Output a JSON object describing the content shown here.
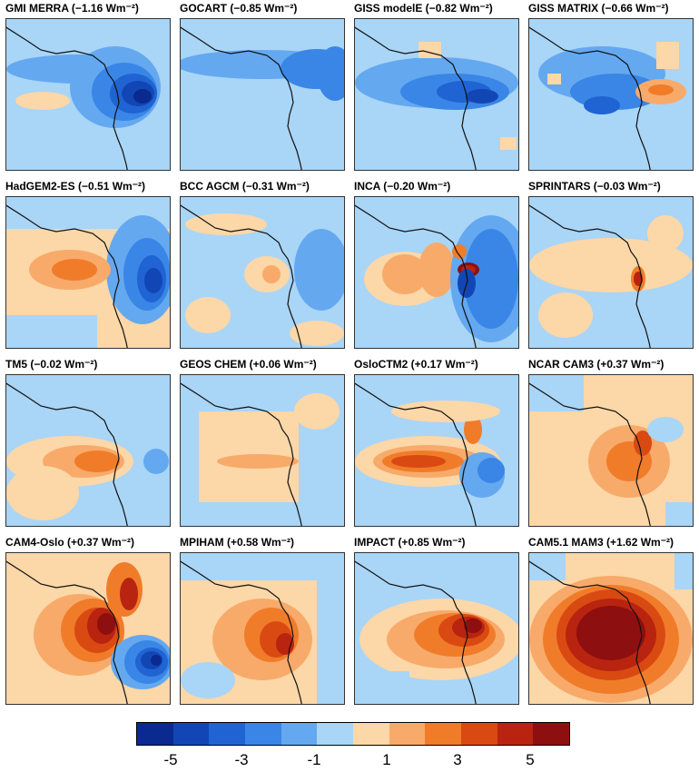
{
  "panels": [
    {
      "title": "GMI MERRA (−1.16 Wm⁻²)",
      "pattern": "neg_strong"
    },
    {
      "title": "GOCART (−0.85 Wm⁻²)",
      "pattern": "neg_band"
    },
    {
      "title": "GISS modelE (−0.82 Wm⁻²)",
      "pattern": "neg_band_dark"
    },
    {
      "title": "GISS MATRIX (−0.66 Wm⁻²)",
      "pattern": "neg_band_orange"
    },
    {
      "title": "HadGEM2-ES (−0.51 Wm⁻²)",
      "pattern": "mixed_left_pos"
    },
    {
      "title": "BCC AGCM (−0.31 Wm⁻²)",
      "pattern": "weak_mixed"
    },
    {
      "title": "INCA (−0.20 Wm⁻²)",
      "pattern": "inca"
    },
    {
      "title": "SPRINTARS (−0.03 Wm⁻²)",
      "pattern": "sprintars"
    },
    {
      "title": "TM5 (−0.02 Wm⁻²)",
      "pattern": "weak_pos"
    },
    {
      "title": "GEOS CHEM (+0.06 Wm⁻²)",
      "pattern": "geos"
    },
    {
      "title": "OsloCTM2 (+0.17 Wm⁻²)",
      "pattern": "oslo"
    },
    {
      "title": "NCAR CAM3 (+0.37 Wm⁻²)",
      "pattern": "ncar"
    },
    {
      "title": "CAM4-Oslo (+0.37 Wm⁻²)",
      "pattern": "cam4"
    },
    {
      "title": "MPIHAM (+0.58 Wm⁻²)",
      "pattern": "mpiham"
    },
    {
      "title": "IMPACT (+0.85 Wm⁻²)",
      "pattern": "impact"
    },
    {
      "title": "CAM5.1 MAM3 (+1.62 Wm⁻²)",
      "pattern": "cam5"
    }
  ],
  "colorbar": {
    "colors": [
      "#0a2a8f",
      "#1346b5",
      "#1f64d2",
      "#3a86e6",
      "#64a8f0",
      "#a9d5f7",
      "#fcd7a8",
      "#f8aa6a",
      "#f07c2a",
      "#d94a12",
      "#b82410",
      "#8e0f10"
    ],
    "ticks": [
      "-5",
      "-3",
      "-1",
      "1",
      "3",
      "5"
    ]
  },
  "colors": {
    "coastline": "#111111"
  }
}
